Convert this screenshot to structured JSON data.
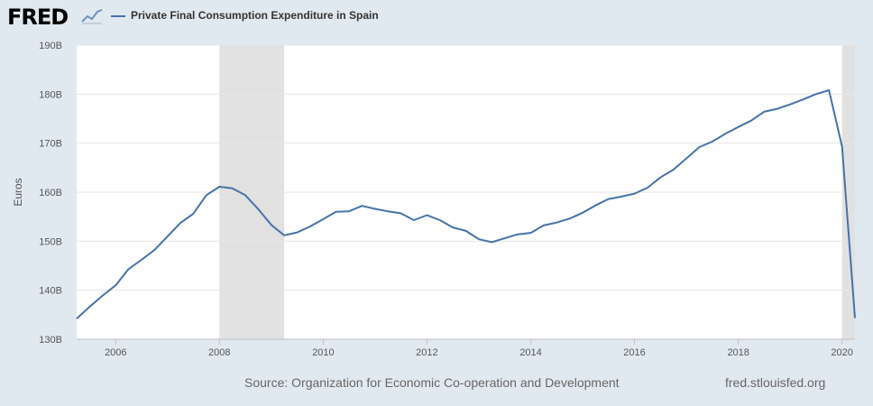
{
  "header": {
    "logo": "FRED",
    "logo_icon": "line-graph-icon"
  },
  "chart_data": {
    "type": "line",
    "title": "Private Final Consumption Expenditure in Spain",
    "ylabel": "Euros",
    "xlabel": "",
    "xlim": [
      "2005-04-01",
      "2020-04-01"
    ],
    "ylim": [
      130,
      190
    ],
    "x_ticks": [
      "2006",
      "2008",
      "2010",
      "2012",
      "2014",
      "2016",
      "2018",
      "2020"
    ],
    "y_ticks": [
      "130B",
      "140B",
      "150B",
      "160B",
      "170B",
      "180B",
      "190B"
    ],
    "y_tick_values": [
      130,
      140,
      150,
      160,
      170,
      180,
      190
    ],
    "grid": true,
    "legend": "top-left",
    "recessions": [
      {
        "start": "2008-01-01",
        "end": "2009-04-01"
      },
      {
        "start": "2020-01-01",
        "end": "2020-04-01"
      }
    ],
    "series": [
      {
        "name": "Private Final Consumption Expenditure in Spain",
        "color": "#4572a7",
        "x": [
          "2005-04-01",
          "2005-07-01",
          "2005-10-01",
          "2006-01-01",
          "2006-04-01",
          "2006-07-01",
          "2006-10-01",
          "2007-01-01",
          "2007-04-01",
          "2007-07-01",
          "2007-10-01",
          "2008-01-01",
          "2008-04-01",
          "2008-07-01",
          "2008-10-01",
          "2009-01-01",
          "2009-04-01",
          "2009-07-01",
          "2009-10-01",
          "2010-01-01",
          "2010-04-01",
          "2010-07-01",
          "2010-10-01",
          "2011-01-01",
          "2011-04-01",
          "2011-07-01",
          "2011-10-01",
          "2012-01-01",
          "2012-04-01",
          "2012-07-01",
          "2012-10-01",
          "2013-01-01",
          "2013-04-01",
          "2013-07-01",
          "2013-10-01",
          "2014-01-01",
          "2014-04-01",
          "2014-07-01",
          "2014-10-01",
          "2015-01-01",
          "2015-04-01",
          "2015-07-01",
          "2015-10-01",
          "2016-01-01",
          "2016-04-01",
          "2016-07-01",
          "2016-10-01",
          "2017-01-01",
          "2017-04-01",
          "2017-07-01",
          "2017-10-01",
          "2018-01-01",
          "2018-04-01",
          "2018-07-01",
          "2018-10-01",
          "2019-01-01",
          "2019-04-01",
          "2019-07-01",
          "2019-10-01",
          "2020-01-01",
          "2020-04-01"
        ],
        "values": [
          134.2,
          136.6,
          138.9,
          141.0,
          144.3,
          146.2,
          148.2,
          151.0,
          153.7,
          155.6,
          159.4,
          161.1,
          160.8,
          159.4,
          156.5,
          153.3,
          151.2,
          151.8,
          153.0,
          154.5,
          156.0,
          156.1,
          157.2,
          156.6,
          156.1,
          155.7,
          154.3,
          155.3,
          154.3,
          152.8,
          152.1,
          150.4,
          149.8,
          150.6,
          151.4,
          151.7,
          153.2,
          153.8,
          154.6,
          155.8,
          157.3,
          158.6,
          159.1,
          159.7,
          160.9,
          163.0,
          164.6,
          166.9,
          169.2,
          170.3,
          171.9,
          173.3,
          174.6,
          176.4,
          177.0,
          177.9,
          178.9,
          180.0,
          180.8,
          169.3,
          134.3
        ]
      }
    ]
  },
  "footer": {
    "source": "Source: Organization for Economic Co-operation and Development",
    "url": "fred.stlouisfed.org"
  }
}
